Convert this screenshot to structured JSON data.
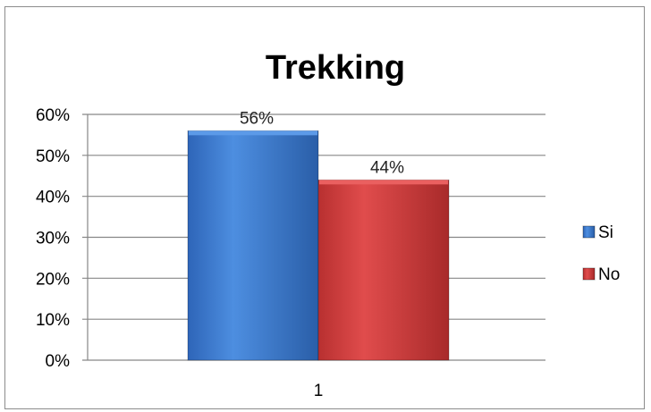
{
  "chart_data": {
    "type": "bar",
    "title": "Trekking",
    "categories": [
      "1"
    ],
    "series": [
      {
        "name": "Si",
        "values": [
          0.56
        ],
        "labels": [
          "56%"
        ],
        "color": "#3f7fd6"
      },
      {
        "name": "No",
        "values": [
          0.44
        ],
        "labels": [
          "44%"
        ],
        "color": "#d63d3d"
      }
    ],
    "ylim": [
      0,
      0.6
    ],
    "yticks": [
      0,
      0.1,
      0.2,
      0.3,
      0.4,
      0.5,
      0.6
    ],
    "ytick_labels": [
      "0%",
      "10%",
      "20%",
      "30%",
      "40%",
      "50%",
      "60%"
    ],
    "xlabel": "",
    "ylabel": "",
    "grid": true,
    "legend_position": "right"
  }
}
